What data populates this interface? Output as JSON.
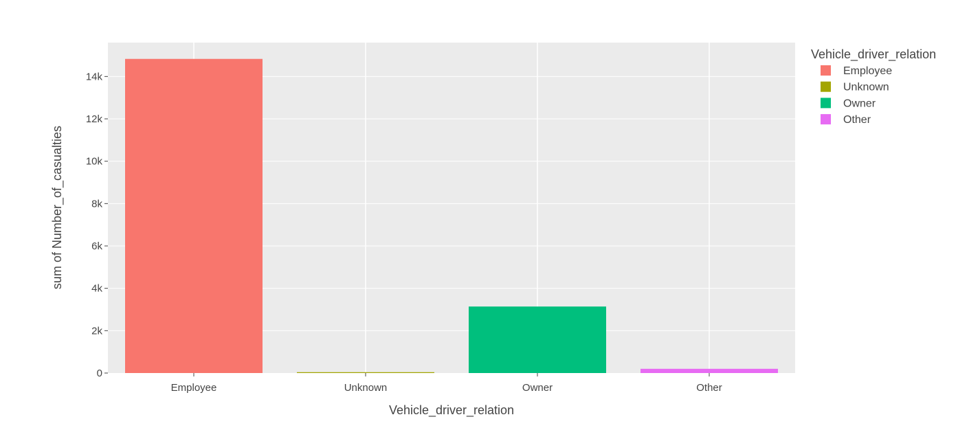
{
  "chart_data": {
    "type": "bar",
    "categories": [
      "Employee",
      "Unknown",
      "Owner",
      "Other"
    ],
    "values": [
      14830,
      40,
      3140,
      200
    ],
    "colors": [
      "#F8766D",
      "#A3A500",
      "#00BF7D",
      "#E76BF3"
    ],
    "xlabel": "Vehicle_driver_relation",
    "ylabel": "sum of Number_of_casualties",
    "ylim": [
      0,
      15600
    ],
    "yticks": [
      0,
      2000,
      4000,
      6000,
      8000,
      10000,
      12000,
      14000
    ],
    "ytick_labels": [
      "0",
      "2k",
      "4k",
      "6k",
      "8k",
      "10k",
      "12k",
      "14k"
    ],
    "grid": true,
    "plot_background": "#EBEBEB",
    "legend": {
      "title": "Vehicle_driver_relation",
      "placement": "right",
      "entries": [
        "Employee",
        "Unknown",
        "Owner",
        "Other"
      ]
    }
  }
}
